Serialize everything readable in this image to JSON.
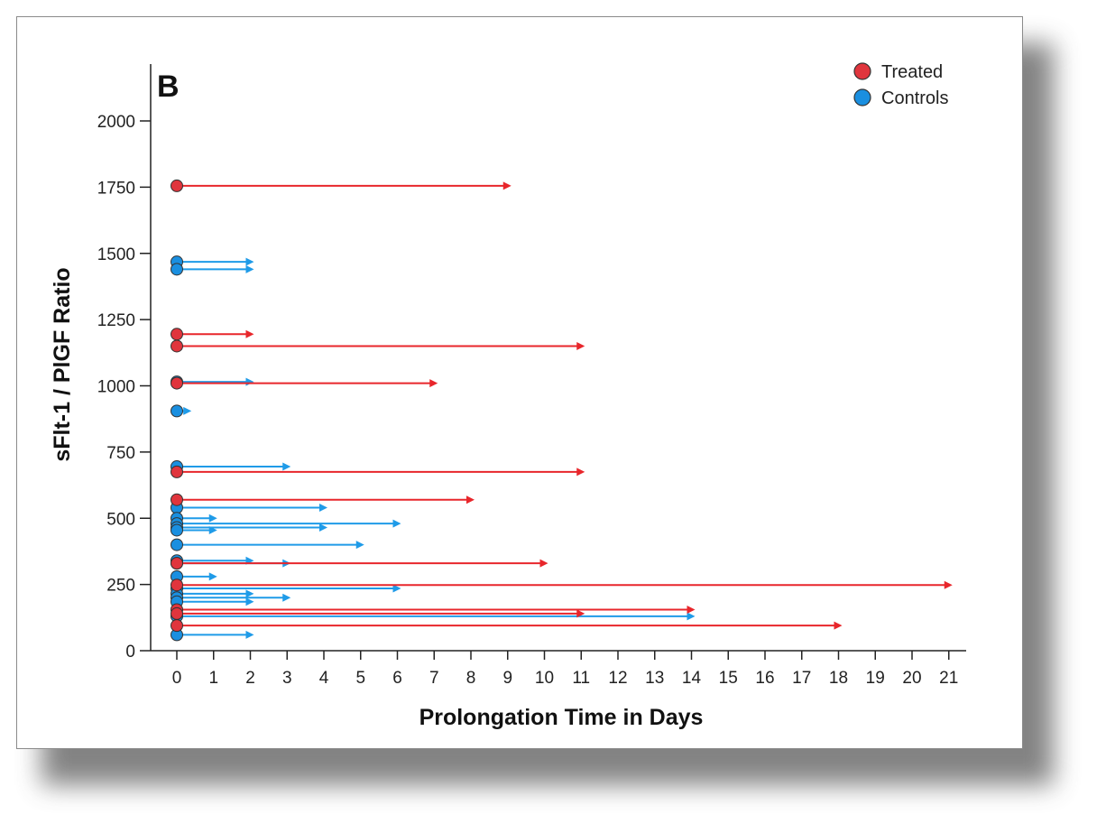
{
  "chart_data": {
    "type": "arrow-plot",
    "panel_label": "B",
    "xlabel": "Prolongation Time in Days",
    "ylabel": "sFlt-1 / PlGF Ratio",
    "xlim": [
      0,
      21
    ],
    "ylim": [
      0,
      2000
    ],
    "xticks": [
      0,
      1,
      2,
      3,
      4,
      5,
      6,
      7,
      8,
      9,
      10,
      11,
      12,
      13,
      14,
      15,
      16,
      17,
      18,
      19,
      20,
      21
    ],
    "yticks": [
      0,
      250,
      500,
      750,
      1000,
      1250,
      1500,
      1750,
      2000
    ],
    "colors": {
      "Treated": "#e8262b",
      "Controls": "#1f9be8"
    },
    "legend": [
      {
        "name": "Treated",
        "marker_color": "#e0353d"
      },
      {
        "name": "Controls",
        "marker_color": "#1a8fe0"
      }
    ],
    "series": [
      {
        "name": "Treated",
        "points": [
          {
            "ratio": 1755,
            "days": 9
          },
          {
            "ratio": 1195,
            "days": 2
          },
          {
            "ratio": 1150,
            "days": 11
          },
          {
            "ratio": 1010,
            "days": 7
          },
          {
            "ratio": 675,
            "days": 11
          },
          {
            "ratio": 570,
            "days": 8
          },
          {
            "ratio": 330,
            "days": 10
          },
          {
            "ratio": 248,
            "days": 21
          },
          {
            "ratio": 155,
            "days": 14
          },
          {
            "ratio": 140,
            "days": 11
          },
          {
            "ratio": 95,
            "days": 18
          }
        ]
      },
      {
        "name": "Controls",
        "points": [
          {
            "ratio": 1468,
            "days": 2
          },
          {
            "ratio": 1440,
            "days": 2
          },
          {
            "ratio": 1015,
            "days": 2
          },
          {
            "ratio": 905,
            "days": 0.3
          },
          {
            "ratio": 695,
            "days": 3
          },
          {
            "ratio": 540,
            "days": 4
          },
          {
            "ratio": 500,
            "days": 1
          },
          {
            "ratio": 480,
            "days": 6
          },
          {
            "ratio": 465,
            "days": 4
          },
          {
            "ratio": 455,
            "days": 1
          },
          {
            "ratio": 400,
            "days": 5
          },
          {
            "ratio": 340,
            "days": 2
          },
          {
            "ratio": 330,
            "days": 3
          },
          {
            "ratio": 280,
            "days": 1
          },
          {
            "ratio": 235,
            "days": 6
          },
          {
            "ratio": 215,
            "days": 2
          },
          {
            "ratio": 200,
            "days": 3
          },
          {
            "ratio": 185,
            "days": 2
          },
          {
            "ratio": 130,
            "days": 14
          },
          {
            "ratio": 60,
            "days": 2
          }
        ]
      }
    ]
  }
}
